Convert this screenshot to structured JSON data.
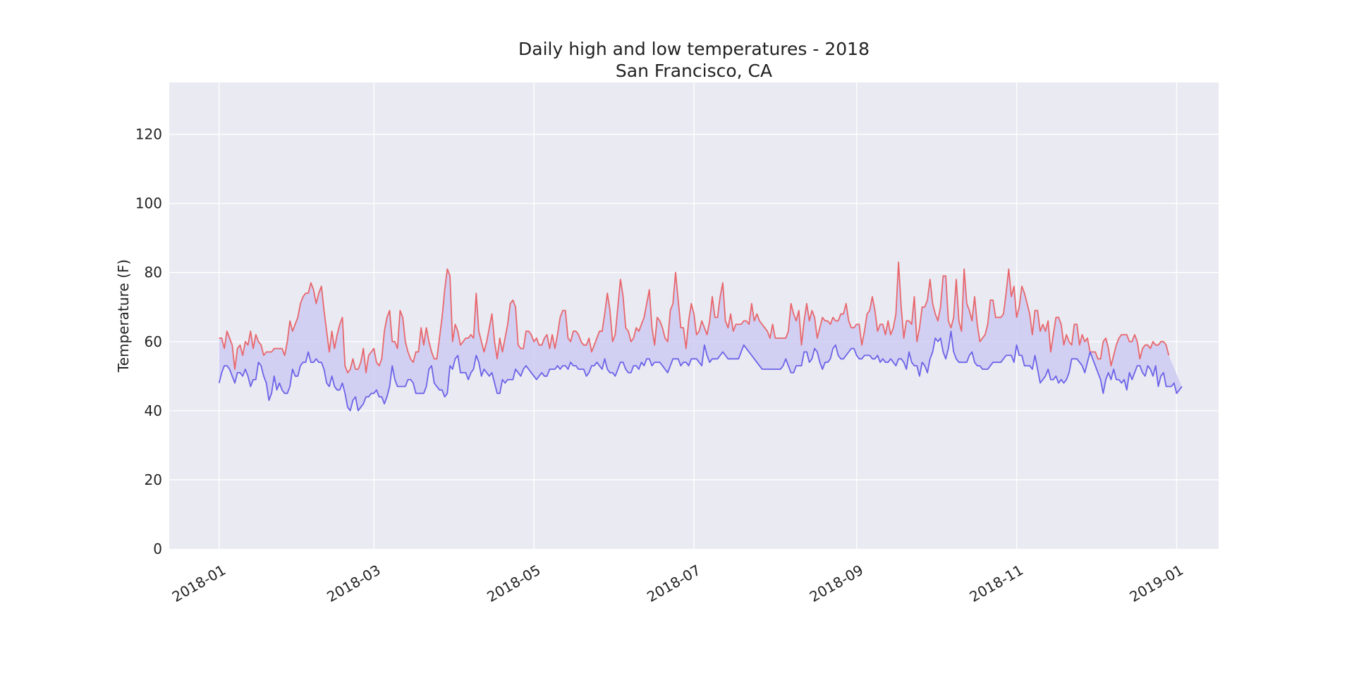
{
  "chart_data": {
    "type": "line",
    "title": "Daily high and low temperatures - 2018\nSan Francisco, CA",
    "title_lines": [
      "Daily high and low temperatures - 2018",
      "San Francisco, CA"
    ],
    "xlabel": "",
    "ylabel": "Temperature (F)",
    "start_date": "2018-01-01",
    "xlim": [
      "2017-12-13",
      "2019-01-17"
    ],
    "ylim": [
      0,
      135
    ],
    "x_ticks": [
      "2018-01",
      "2018-03",
      "2018-05",
      "2018-07",
      "2018-09",
      "2018-11",
      "2019-01"
    ],
    "y_ticks": [
      0,
      20,
      40,
      60,
      80,
      100,
      120
    ],
    "grid": true,
    "fill_between": true,
    "colors": {
      "high": "#e8676c",
      "low": "#6c63e8",
      "fill": "#c8c6f2",
      "background": "#eaeaf2",
      "grid": "#ffffff"
    },
    "series": [
      {
        "key": "high",
        "name": "",
        "values": [
          61,
          61,
          58,
          63,
          61,
          59,
          52,
          58,
          59,
          56,
          60,
          59,
          63,
          58,
          62,
          60,
          59,
          56,
          57,
          57,
          57,
          58,
          58,
          58,
          58,
          56,
          60,
          66,
          63,
          65,
          67,
          71,
          73,
          74,
          74,
          77,
          75,
          71,
          74,
          76,
          69,
          63,
          57,
          63,
          58,
          62,
          65,
          67,
          53,
          51,
          52,
          55,
          52,
          52,
          54,
          58,
          51,
          56,
          57,
          58,
          54,
          53,
          55,
          63,
          67,
          69,
          60,
          60,
          58,
          69,
          67,
          60,
          57,
          55,
          54,
          57,
          57,
          64,
          59,
          64,
          60,
          57,
          55,
          55,
          61,
          67,
          75,
          81,
          79,
          60,
          65,
          63,
          59,
          60,
          61,
          61,
          62,
          61,
          74,
          63,
          60,
          57,
          60,
          64,
          68,
          60,
          55,
          61,
          57,
          61,
          65,
          71,
          72,
          70,
          59,
          58,
          58,
          63,
          63,
          62,
          60,
          61,
          59,
          59,
          61,
          62,
          58,
          62,
          58,
          62,
          67,
          69,
          69,
          61,
          60,
          63,
          63,
          62,
          60,
          59,
          59,
          61,
          57,
          59,
          61,
          63,
          63,
          68,
          74,
          69,
          60,
          62,
          70,
          78,
          73,
          64,
          63,
          60,
          61,
          64,
          63,
          65,
          67,
          71,
          75,
          64,
          59,
          67,
          66,
          64,
          61,
          60,
          69,
          71,
          80,
          72,
          64,
          64,
          58,
          66,
          71,
          68,
          62,
          63,
          66,
          64,
          62,
          66,
          73,
          67,
          67,
          73,
          77,
          66,
          64,
          68,
          63,
          65,
          65,
          65,
          66,
          66,
          65,
          71,
          66,
          68,
          66,
          65,
          64,
          63,
          61,
          65,
          61,
          61,
          61,
          61,
          61,
          63,
          71,
          68,
          66,
          69,
          59,
          66,
          71,
          66,
          69,
          67,
          61,
          64,
          67,
          66,
          66,
          65,
          67,
          66,
          66,
          68,
          68,
          71,
          66,
          64,
          64,
          65,
          65,
          59,
          63,
          68,
          69,
          73,
          69,
          63,
          65,
          65,
          62,
          66,
          62,
          64,
          68,
          83,
          70,
          61,
          66,
          66,
          65,
          73,
          60,
          64,
          70,
          70,
          72,
          78,
          71,
          68,
          66,
          70,
          79,
          79,
          66,
          64,
          67,
          78,
          66,
          63,
          81,
          71,
          69,
          66,
          73,
          65,
          60,
          61,
          62,
          65,
          72,
          72,
          67,
          67,
          67,
          68,
          74,
          81,
          73,
          76,
          67,
          70,
          76,
          74,
          71,
          68,
          62,
          69,
          69,
          63,
          65,
          63,
          66,
          57,
          62,
          67,
          67,
          65,
          59,
          62,
          60,
          59,
          65,
          65,
          59,
          62,
          60,
          61,
          57,
          57,
          57,
          55,
          55,
          60,
          61,
          58,
          53,
          56,
          59,
          61,
          62,
          62,
          62,
          60,
          60,
          62,
          60,
          55,
          58,
          59,
          59,
          58,
          60,
          59,
          59,
          60,
          60,
          59,
          56
        ]
      },
      {
        "key": "low",
        "name": "",
        "values": [
          48,
          51,
          53,
          53,
          52,
          50,
          48,
          51,
          51,
          50,
          52,
          50,
          47,
          49,
          49,
          54,
          53,
          50,
          48,
          43,
          45,
          50,
          46,
          48,
          46,
          45,
          45,
          47,
          52,
          50,
          50,
          53,
          54,
          54,
          57,
          54,
          54,
          55,
          54,
          54,
          52,
          48,
          47,
          50,
          47,
          46,
          46,
          48,
          45,
          41,
          40,
          43,
          44,
          40,
          41,
          42,
          44,
          44,
          45,
          45,
          46,
          44,
          44,
          42,
          44,
          47,
          53,
          49,
          47,
          47,
          47,
          47,
          49,
          49,
          48,
          45,
          45,
          45,
          45,
          47,
          52,
          53,
          48,
          47,
          46,
          46,
          44,
          45,
          53,
          52,
          55,
          56,
          51,
          51,
          51,
          49,
          51,
          52,
          56,
          54,
          50,
          52,
          51,
          50,
          51,
          48,
          45,
          45,
          49,
          48,
          49,
          49,
          49,
          52,
          51,
          50,
          52,
          53,
          52,
          51,
          50,
          49,
          50,
          51,
          50,
          50,
          52,
          52,
          52,
          53,
          52,
          53,
          53,
          52,
          54,
          53,
          53,
          52,
          52,
          52,
          50,
          51,
          53,
          53,
          54,
          53,
          52,
          55,
          52,
          51,
          51,
          50,
          52,
          54,
          54,
          52,
          51,
          51,
          53,
          53,
          52,
          54,
          53,
          55,
          55,
          53,
          54,
          54,
          54,
          53,
          52,
          51,
          53,
          55,
          55,
          55,
          53,
          54,
          54,
          53,
          55,
          55,
          55,
          54,
          53,
          59,
          56,
          54,
          55,
          55,
          55,
          56,
          57,
          56,
          55,
          55,
          55,
          55,
          55,
          57,
          59,
          58,
          57,
          56,
          55,
          54,
          53,
          52,
          52,
          52,
          52,
          52,
          52,
          52,
          52,
          53,
          55,
          53,
          51,
          51,
          53,
          53,
          53,
          57,
          57,
          54,
          55,
          58,
          57,
          54,
          52,
          54,
          54,
          55,
          58,
          59,
          56,
          55,
          55,
          56,
          57,
          58,
          58,
          56,
          55,
          55,
          56,
          56,
          56,
          55,
          55,
          56,
          54,
          55,
          54,
          54,
          55,
          54,
          53,
          55,
          55,
          54,
          52,
          57,
          54,
          53,
          53,
          50,
          54,
          53,
          51,
          55,
          57,
          61,
          60,
          61,
          57,
          55,
          58,
          63,
          57,
          55,
          54,
          54,
          54,
          54,
          56,
          57,
          54,
          53,
          53,
          52,
          52,
          52,
          53,
          54,
          54,
          54,
          54,
          55,
          56,
          56,
          56,
          54,
          59,
          56,
          56,
          53,
          53,
          53,
          52,
          56,
          52,
          48,
          49,
          50,
          52,
          49,
          49,
          50,
          48,
          49,
          48,
          49,
          51,
          55,
          55,
          55,
          54,
          53,
          51,
          54,
          57,
          55,
          53,
          51,
          49,
          45,
          49,
          51,
          49,
          52,
          49,
          49,
          48,
          49,
          46,
          51,
          49,
          51,
          53,
          53,
          51,
          50,
          53,
          52,
          50,
          53,
          47,
          50,
          51,
          47,
          47,
          47,
          48,
          45,
          46,
          47
        ]
      }
    ]
  }
}
